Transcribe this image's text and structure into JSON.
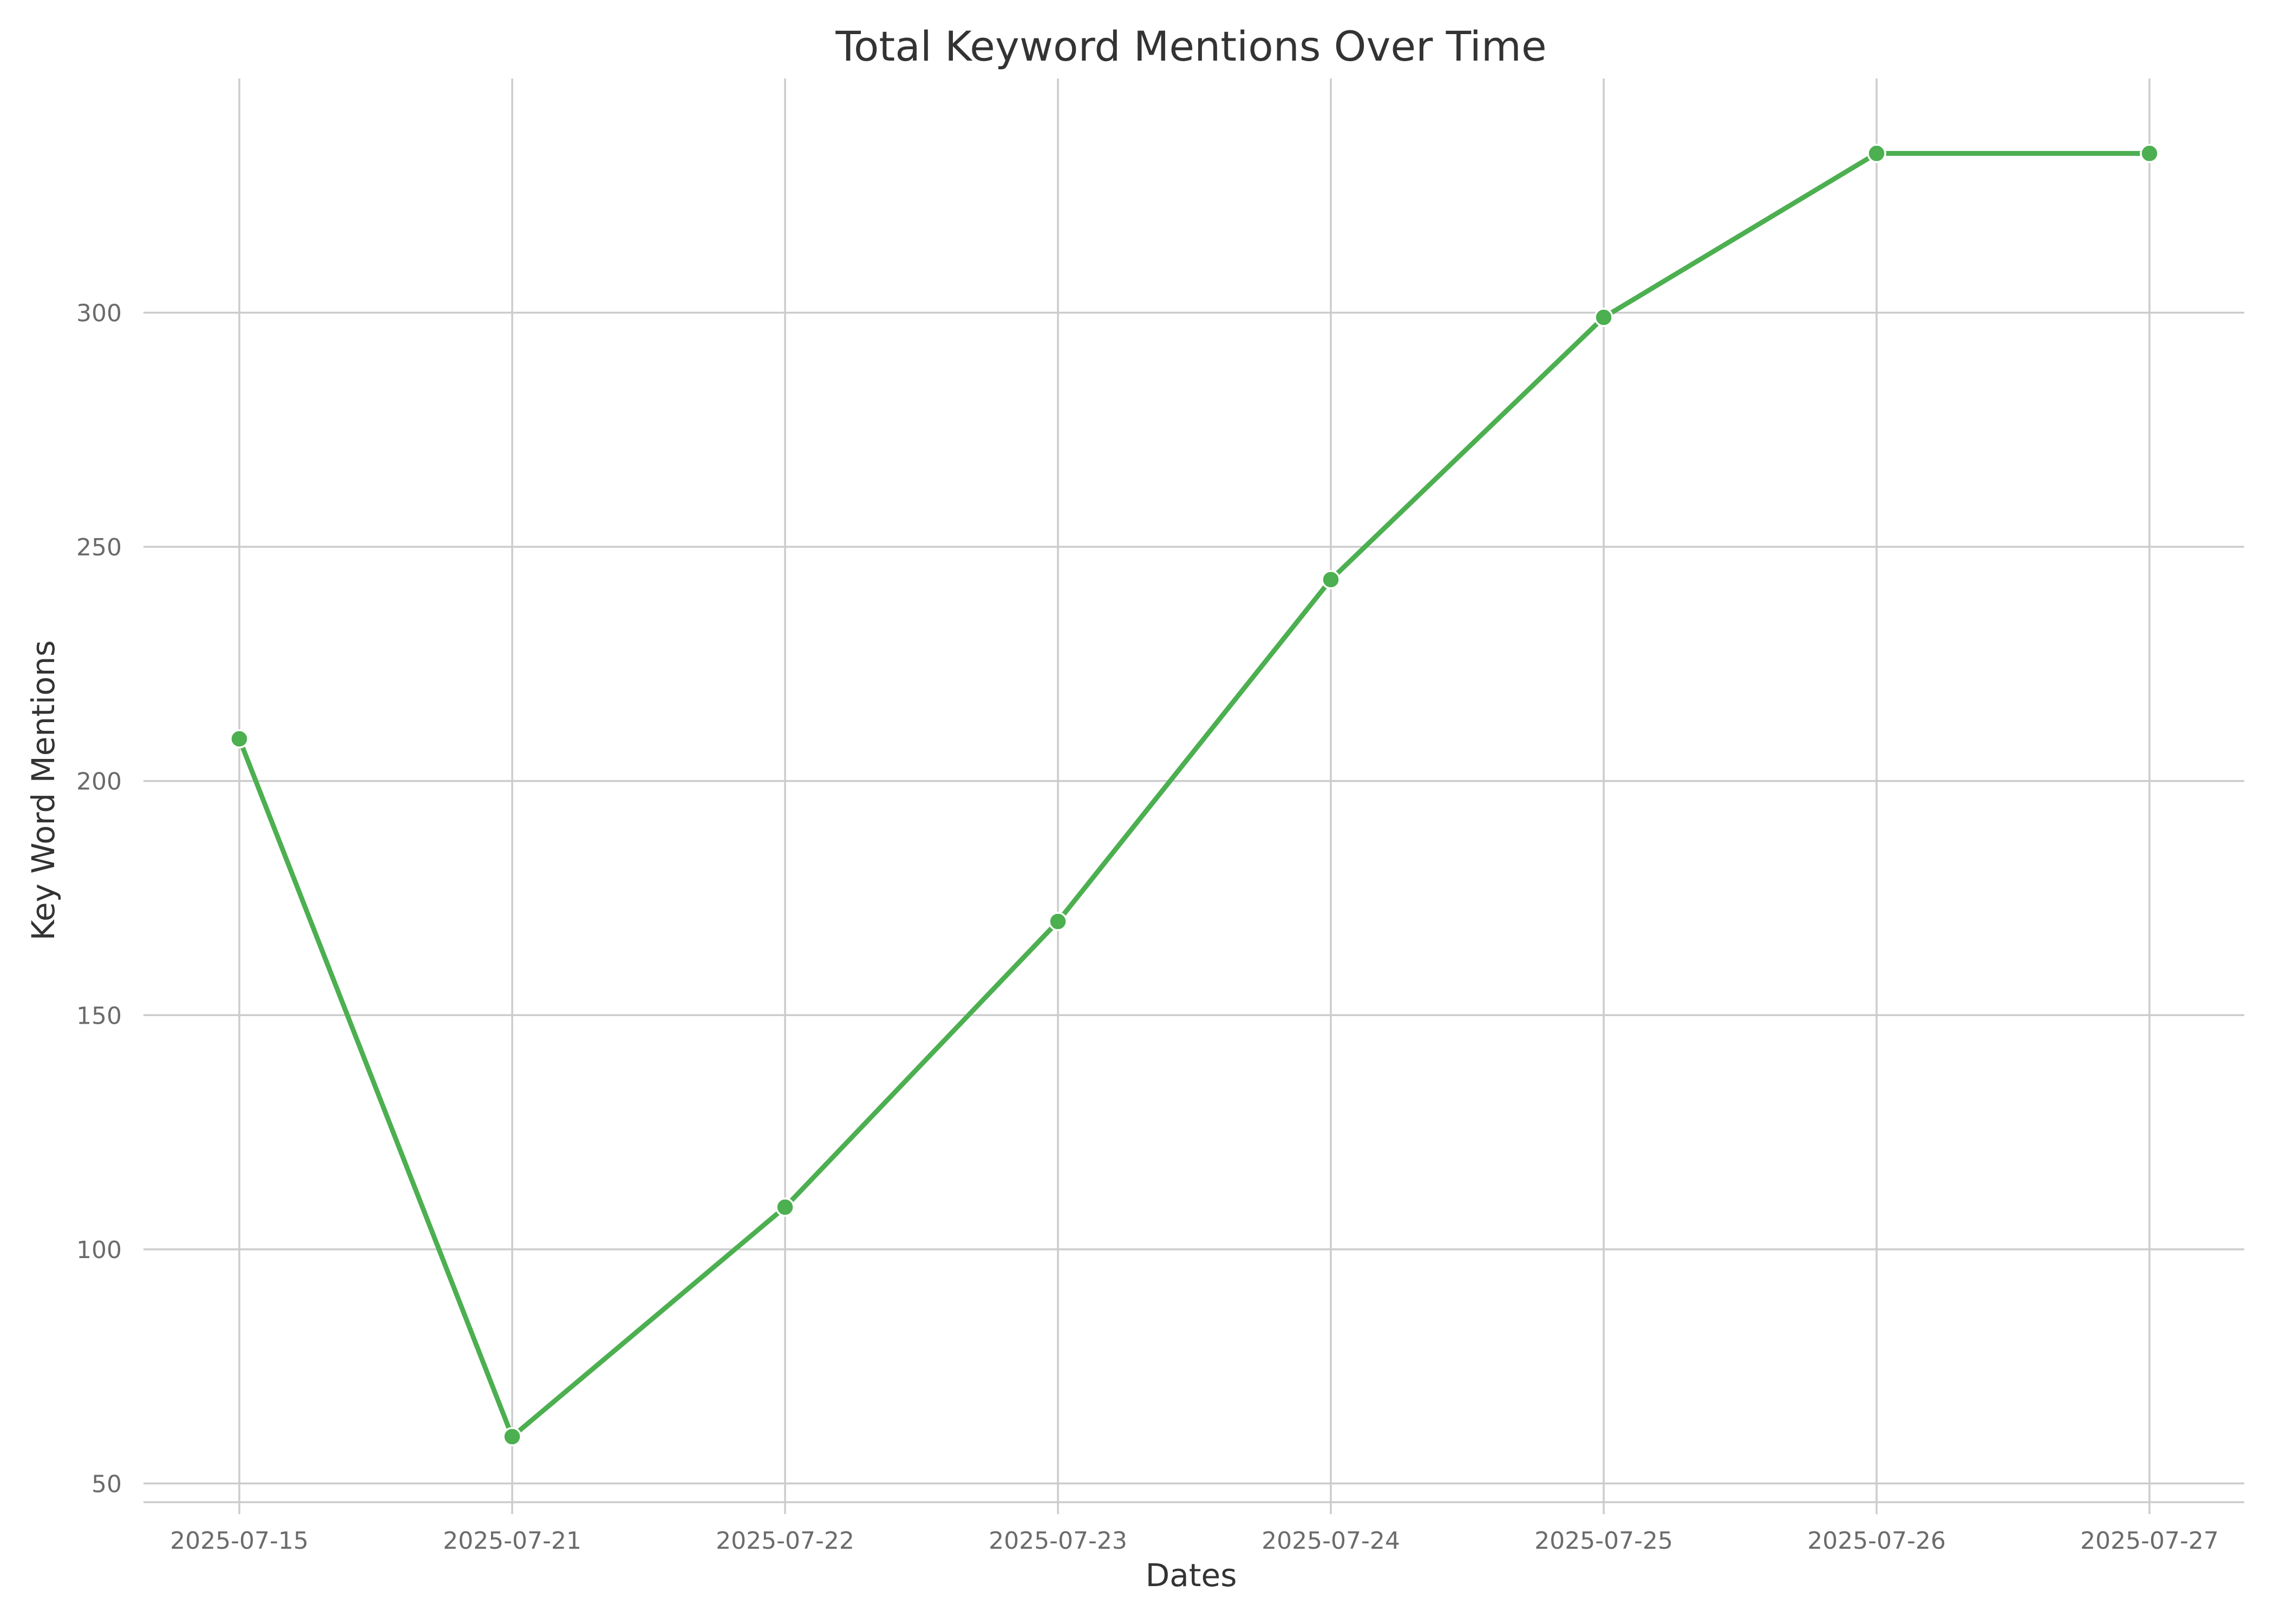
{
  "chart_data": {
    "type": "line",
    "title": "Total Keyword Mentions Over Time",
    "xlabel": "Dates",
    "ylabel": "Key Word Mentions",
    "x": [
      "2025-07-15",
      "2025-07-21",
      "2025-07-22",
      "2025-07-23",
      "2025-07-24",
      "2025-07-25",
      "2025-07-26",
      "2025-07-27"
    ],
    "series": [
      {
        "values": [
          209,
          60,
          109,
          170,
          243,
          299,
          334,
          334
        ],
        "color": "#4caf50"
      }
    ],
    "yticks": [
      50,
      100,
      150,
      200,
      250,
      300
    ],
    "ylim": [
      46,
      350
    ],
    "grid": true,
    "legend": "none"
  }
}
